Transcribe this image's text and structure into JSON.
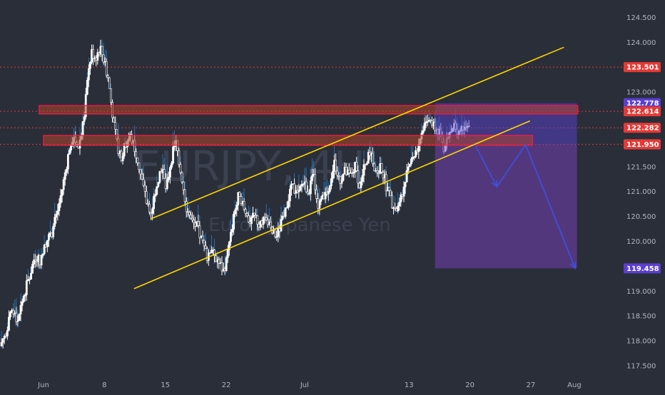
{
  "chart_data": {
    "type": "candlestick",
    "watermark": {
      "symbol": "EURJPY, 4H",
      "description": "Euro / Japanese Yen"
    },
    "colors": {
      "background": "#2a2e39",
      "bull_body": "#ffffff",
      "bear_body": "#2a2e39",
      "wick": "#ffffff",
      "volume_line": "#2196f3",
      "channel": "#ffd600",
      "zone_fill": "#b0442a",
      "zone_border": "#ff1744",
      "projection_box": "#7b3fbf",
      "projection_top": "#5840d0",
      "arrow": "#3f4fd8",
      "level_line": "#e53935",
      "tag_red": "#e53935",
      "tag_purple": "#5b3fd0",
      "tag_gray": "#888888"
    },
    "y_range": [
      117.3,
      124.85
    ],
    "y_ticks": [
      "124.500",
      "124.000",
      "123.501",
      "123.000",
      "122.778",
      "122.614",
      "122.282",
      "121.951",
      "121.950",
      "121.500",
      "121.000",
      "120.500",
      "120.000",
      "119.458",
      "119.000",
      "118.500",
      "118.000",
      "117.500"
    ],
    "x_ticks": [
      {
        "label": "Jun",
        "day": 1
      },
      {
        "label": "8",
        "day": 8
      },
      {
        "label": "15",
        "day": 15
      },
      {
        "label": "22",
        "day": 22
      },
      {
        "label": "Jul",
        "day": 31
      },
      {
        "label": "13",
        "day": 43
      },
      {
        "label": "20",
        "day": 50
      },
      {
        "label": "27",
        "day": 57
      },
      {
        "label": "Aug",
        "day": 62
      }
    ],
    "x_range_days": [
      -4,
      67.5
    ],
    "price_path_days": [
      [
        -4,
        117.9
      ],
      [
        -3.3,
        118.2
      ],
      [
        -2.6,
        118.6
      ],
      [
        -2,
        118.4
      ],
      [
        -1.3,
        118.9
      ],
      [
        -0.6,
        119.3
      ],
      [
        0,
        119.7
      ],
      [
        0.7,
        119.6
      ],
      [
        1.3,
        120.0
      ],
      [
        2,
        120.2
      ],
      [
        2.6,
        120.6
      ],
      [
        3.2,
        121.1
      ],
      [
        3.8,
        121.7
      ],
      [
        4.4,
        122.1
      ],
      [
        5,
        121.9
      ],
      [
        5.6,
        122.4
      ],
      [
        6.1,
        123.3
      ],
      [
        6.5,
        123.8
      ],
      [
        7,
        123.7
      ],
      [
        7.5,
        123.9
      ],
      [
        8,
        123.6
      ],
      [
        8.5,
        123.2
      ],
      [
        9,
        122.4
      ],
      [
        9.5,
        121.9
      ],
      [
        10,
        121.7
      ],
      [
        10.5,
        122.0
      ],
      [
        11,
        122.1
      ],
      [
        11.6,
        121.8
      ],
      [
        12.2,
        121.3
      ],
      [
        12.8,
        120.8
      ],
      [
        13.4,
        120.6
      ],
      [
        14,
        121.2
      ],
      [
        14.6,
        121.5
      ],
      [
        15.1,
        121.0
      ],
      [
        15.6,
        121.6
      ],
      [
        16.2,
        122.0
      ],
      [
        16.8,
        121.4
      ],
      [
        17.4,
        120.7
      ],
      [
        18,
        120.4
      ],
      [
        18.6,
        120.3
      ],
      [
        19.2,
        120.0
      ],
      [
        19.8,
        119.7
      ],
      [
        20.4,
        119.9
      ],
      [
        21,
        119.6
      ],
      [
        21.7,
        119.4
      ],
      [
        22.3,
        119.9
      ],
      [
        22.9,
        120.5
      ],
      [
        23.5,
        121.0
      ],
      [
        24.1,
        120.6
      ],
      [
        24.7,
        120.4
      ],
      [
        25.3,
        120.5
      ],
      [
        25.9,
        120.3
      ],
      [
        26.5,
        120.6
      ],
      [
        27.1,
        120.2
      ],
      [
        27.8,
        120.1
      ],
      [
        28.4,
        120.4
      ],
      [
        29,
        120.8
      ],
      [
        29.6,
        121.1
      ],
      [
        30.2,
        120.9
      ],
      [
        30.8,
        121.2
      ],
      [
        31.4,
        121.0
      ],
      [
        32,
        121.3
      ],
      [
        32.6,
        120.7
      ],
      [
        33.2,
        120.9
      ],
      [
        33.8,
        121.1
      ],
      [
        34.4,
        121.6
      ],
      [
        35,
        121.2
      ],
      [
        35.6,
        121.4
      ],
      [
        36.2,
        121.3
      ],
      [
        36.8,
        121.5
      ],
      [
        37.4,
        121.1
      ],
      [
        38,
        121.6
      ],
      [
        38.6,
        121.8
      ],
      [
        39.2,
        121.4
      ],
      [
        39.8,
        121.5
      ],
      [
        40.4,
        121.1
      ],
      [
        41,
        120.8
      ],
      [
        41.6,
        120.6
      ],
      [
        42.2,
        120.9
      ],
      [
        42.8,
        121.5
      ],
      [
        43.4,
        121.7
      ],
      [
        44,
        121.9
      ],
      [
        44.6,
        122.3
      ],
      [
        45.2,
        122.5
      ],
      [
        45.8,
        122.3
      ],
      [
        46.4,
        122.2
      ],
      [
        47,
        121.9
      ],
      [
        47.6,
        122.1
      ],
      [
        48.2,
        122.3
      ],
      [
        48.8,
        122.2
      ],
      [
        49.4,
        122.4
      ],
      [
        50,
        122.3
      ]
    ],
    "channel_upper": [
      [
        13.3,
        120.45
      ],
      [
        60.8,
        123.9
      ]
    ],
    "channel_lower": [
      [
        11.4,
        119.05
      ],
      [
        56.9,
        122.42
      ]
    ],
    "zones": [
      {
        "from_day": 0.5,
        "to_day": 62.4,
        "low": 122.56,
        "high": 122.73
      },
      {
        "from_day": 1.0,
        "to_day": 57.2,
        "low": 121.93,
        "high": 122.13
      }
    ],
    "dashed_levels": [
      123.501,
      122.614,
      122.282,
      121.951
    ],
    "projection_box": {
      "from_day": 46.0,
      "to_day": 62.3,
      "top": 122.778,
      "mid": 121.951,
      "bottom": 119.458
    },
    "arrow_path": [
      [
        50.6,
        121.94
      ],
      [
        53.1,
        121.1
      ],
      [
        56.4,
        121.94
      ],
      [
        62.1,
        119.46
      ]
    ],
    "price_tags": [
      {
        "label": "123.501",
        "value": 123.501,
        "kind": "red"
      },
      {
        "label": "122.778",
        "value": 122.778,
        "kind": "purple"
      },
      {
        "label": "122.614",
        "value": 122.614,
        "kind": "red"
      },
      {
        "label": "122.282",
        "value": 122.282,
        "kind": "red"
      },
      {
        "label": "121.951",
        "value": 121.951,
        "kind": "gray"
      },
      {
        "label": "121.950",
        "value": 121.95,
        "kind": "red"
      },
      {
        "label": "119.458",
        "value": 119.458,
        "kind": "purple"
      }
    ],
    "axis_ticks_plain": [
      "124.500",
      "124.000",
      "123.000",
      "121.500",
      "121.000",
      "120.500",
      "120.000",
      "119.000",
      "118.500",
      "118.000",
      "117.500"
    ]
  }
}
